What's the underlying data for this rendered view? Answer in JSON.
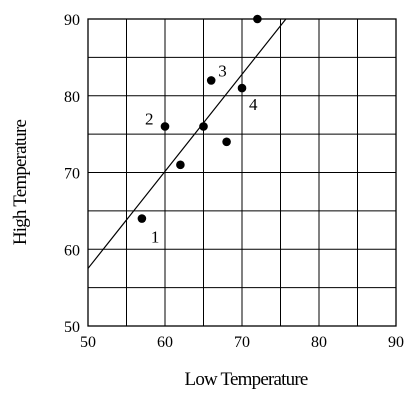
{
  "chart_data": {
    "type": "scatter",
    "title": "",
    "xlabel": "Low Temperature",
    "ylabel": "High Temperature",
    "xlim": [
      50,
      90
    ],
    "ylim": [
      50,
      90
    ],
    "x_ticks": [
      "50",
      "60",
      "70",
      "80",
      "90"
    ],
    "y_ticks": [
      "50",
      "60",
      "70",
      "80",
      "90"
    ],
    "grid": true,
    "grid_step": 5,
    "points": [
      {
        "x": 57,
        "y": 64,
        "label": "1"
      },
      {
        "x": 60,
        "y": 76,
        "label": "2"
      },
      {
        "x": 62,
        "y": 71,
        "label": ""
      },
      {
        "x": 65,
        "y": 76,
        "label": ""
      },
      {
        "x": 66,
        "y": 82,
        "label": "3"
      },
      {
        "x": 68,
        "y": 74,
        "label": ""
      },
      {
        "x": 70,
        "y": 81,
        "label": "4"
      },
      {
        "x": 72,
        "y": 90,
        "label": ""
      }
    ],
    "trend_line": {
      "x": [
        50,
        75.7
      ],
      "y": [
        57.5,
        90
      ]
    },
    "colors": {
      "line": "#000000",
      "grid": "#000000",
      "point": "#000000"
    }
  }
}
